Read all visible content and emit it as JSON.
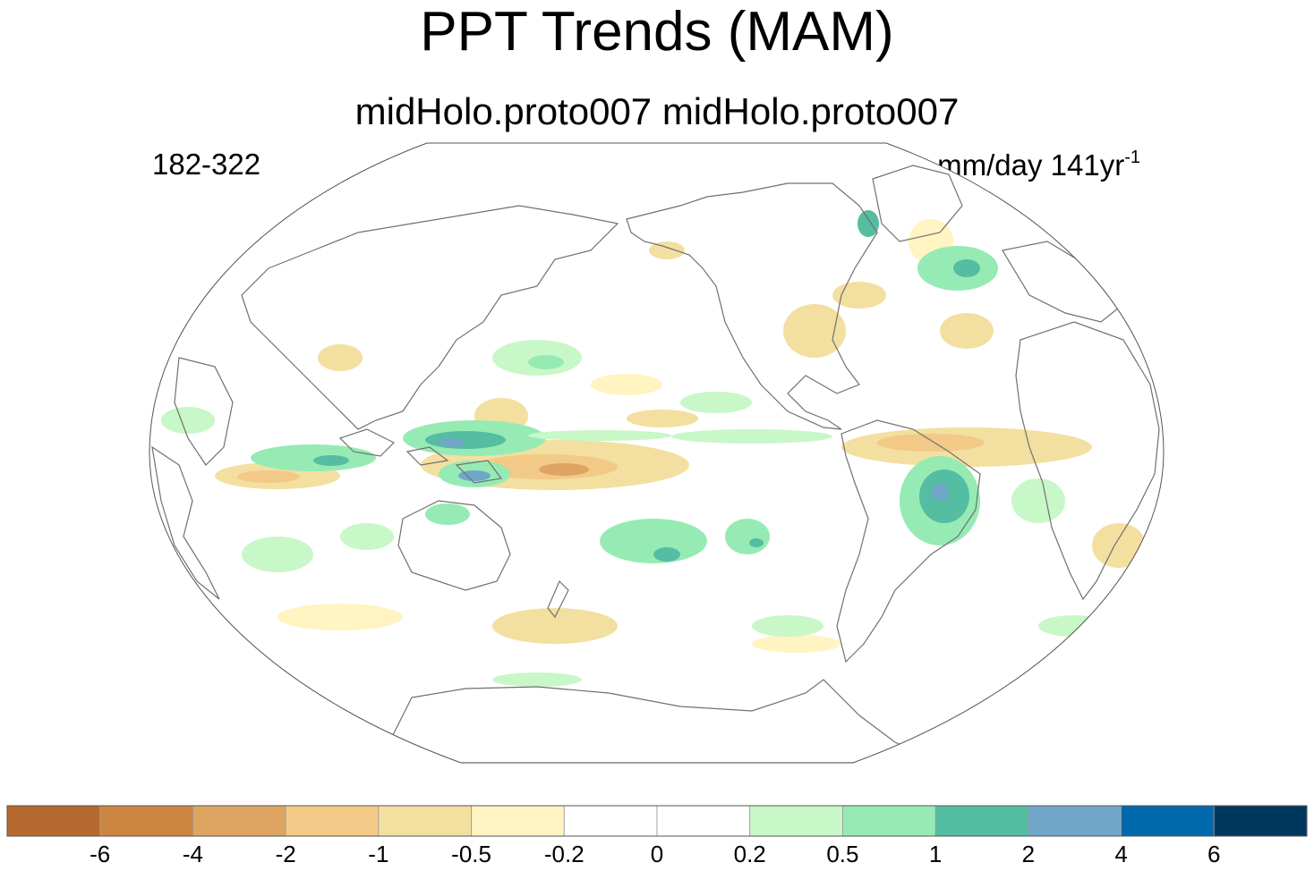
{
  "title": "PPT Trends (MAM)",
  "subtitle": "midHolo.proto007  midHolo.proto007",
  "left_label": "182-322",
  "units": {
    "base": "mm/day 141yr",
    "superscript": "-1"
  },
  "colorbar": {
    "labels": [
      "-6",
      "-4",
      "-2",
      "-1",
      "-0.5",
      "-0.2",
      "0",
      "0.2",
      "0.5",
      "1",
      "2",
      "4",
      "6"
    ],
    "colors": [
      "#b5692e",
      "#cc8642",
      "#dea462",
      "#f3c987",
      "#f3dfa0",
      "#fff4c2",
      "#ffffff",
      "#ffffff",
      "#c8f7c8",
      "#96ebb4",
      "#55bda2",
      "#70a6c8",
      "#0069ac",
      "#00375e"
    ]
  }
}
